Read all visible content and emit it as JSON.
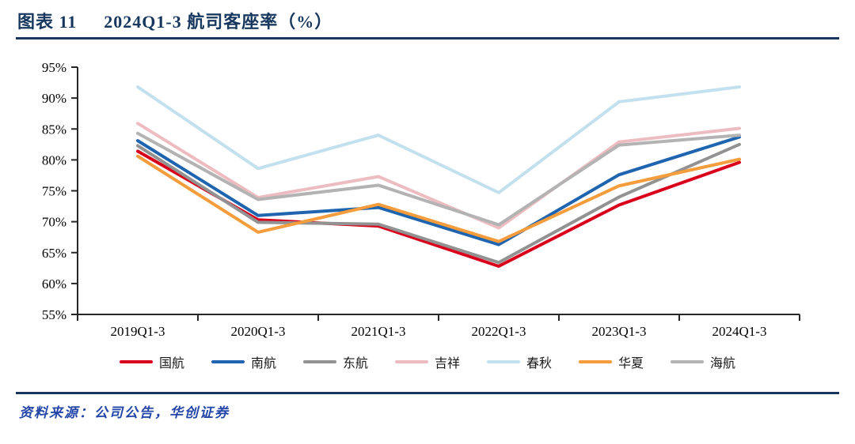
{
  "figure": {
    "label": "图表 11",
    "title": "2024Q1-3 航司客座率（%）",
    "source": "资料来源：公司公告，华创证券"
  },
  "colors": {
    "title_navy": "#17375E",
    "source_blue": "#2346A8",
    "axis": "#262626",
    "tick_label": "#000000"
  },
  "chart_data": {
    "type": "line",
    "title": "2024Q1-3 航司客座率（%）",
    "categories": [
      "2019Q1-3",
      "2020Q1-3",
      "2021Q1-3",
      "2022Q1-3",
      "2023Q1-3",
      "2024Q1-3"
    ],
    "series": [
      {
        "name": "国航",
        "color": "#D9001B",
        "values": [
          81.4,
          70.3,
          69.3,
          62.8,
          72.7,
          79.6
        ]
      },
      {
        "name": "南航",
        "color": "#1F64AF",
        "values": [
          83.1,
          71.0,
          72.3,
          66.3,
          77.6,
          83.7
        ]
      },
      {
        "name": "东航",
        "color": "#929292",
        "values": [
          82.3,
          69.9,
          69.6,
          63.4,
          74.0,
          82.5
        ]
      },
      {
        "name": "吉祥",
        "color": "#EDBCC0",
        "values": [
          85.9,
          73.9,
          77.3,
          69.0,
          82.9,
          85.1
        ]
      },
      {
        "name": "春秋",
        "color": "#C3E0EE",
        "values": [
          91.8,
          78.6,
          84.0,
          74.7,
          89.4,
          91.8
        ]
      },
      {
        "name": "华夏",
        "color": "#F59C3C",
        "values": [
          80.6,
          68.3,
          72.8,
          66.8,
          75.8,
          80.1
        ]
      },
      {
        "name": "海航",
        "color": "#B3B3B3",
        "values": [
          84.3,
          73.6,
          75.9,
          69.5,
          82.4,
          84.0
        ]
      }
    ],
    "ylim": [
      55,
      95
    ],
    "ytick_step": 5,
    "ytick_suffix": "%",
    "xlabel": "",
    "ylabel": "",
    "grid": false,
    "legend_position": "bottom"
  }
}
